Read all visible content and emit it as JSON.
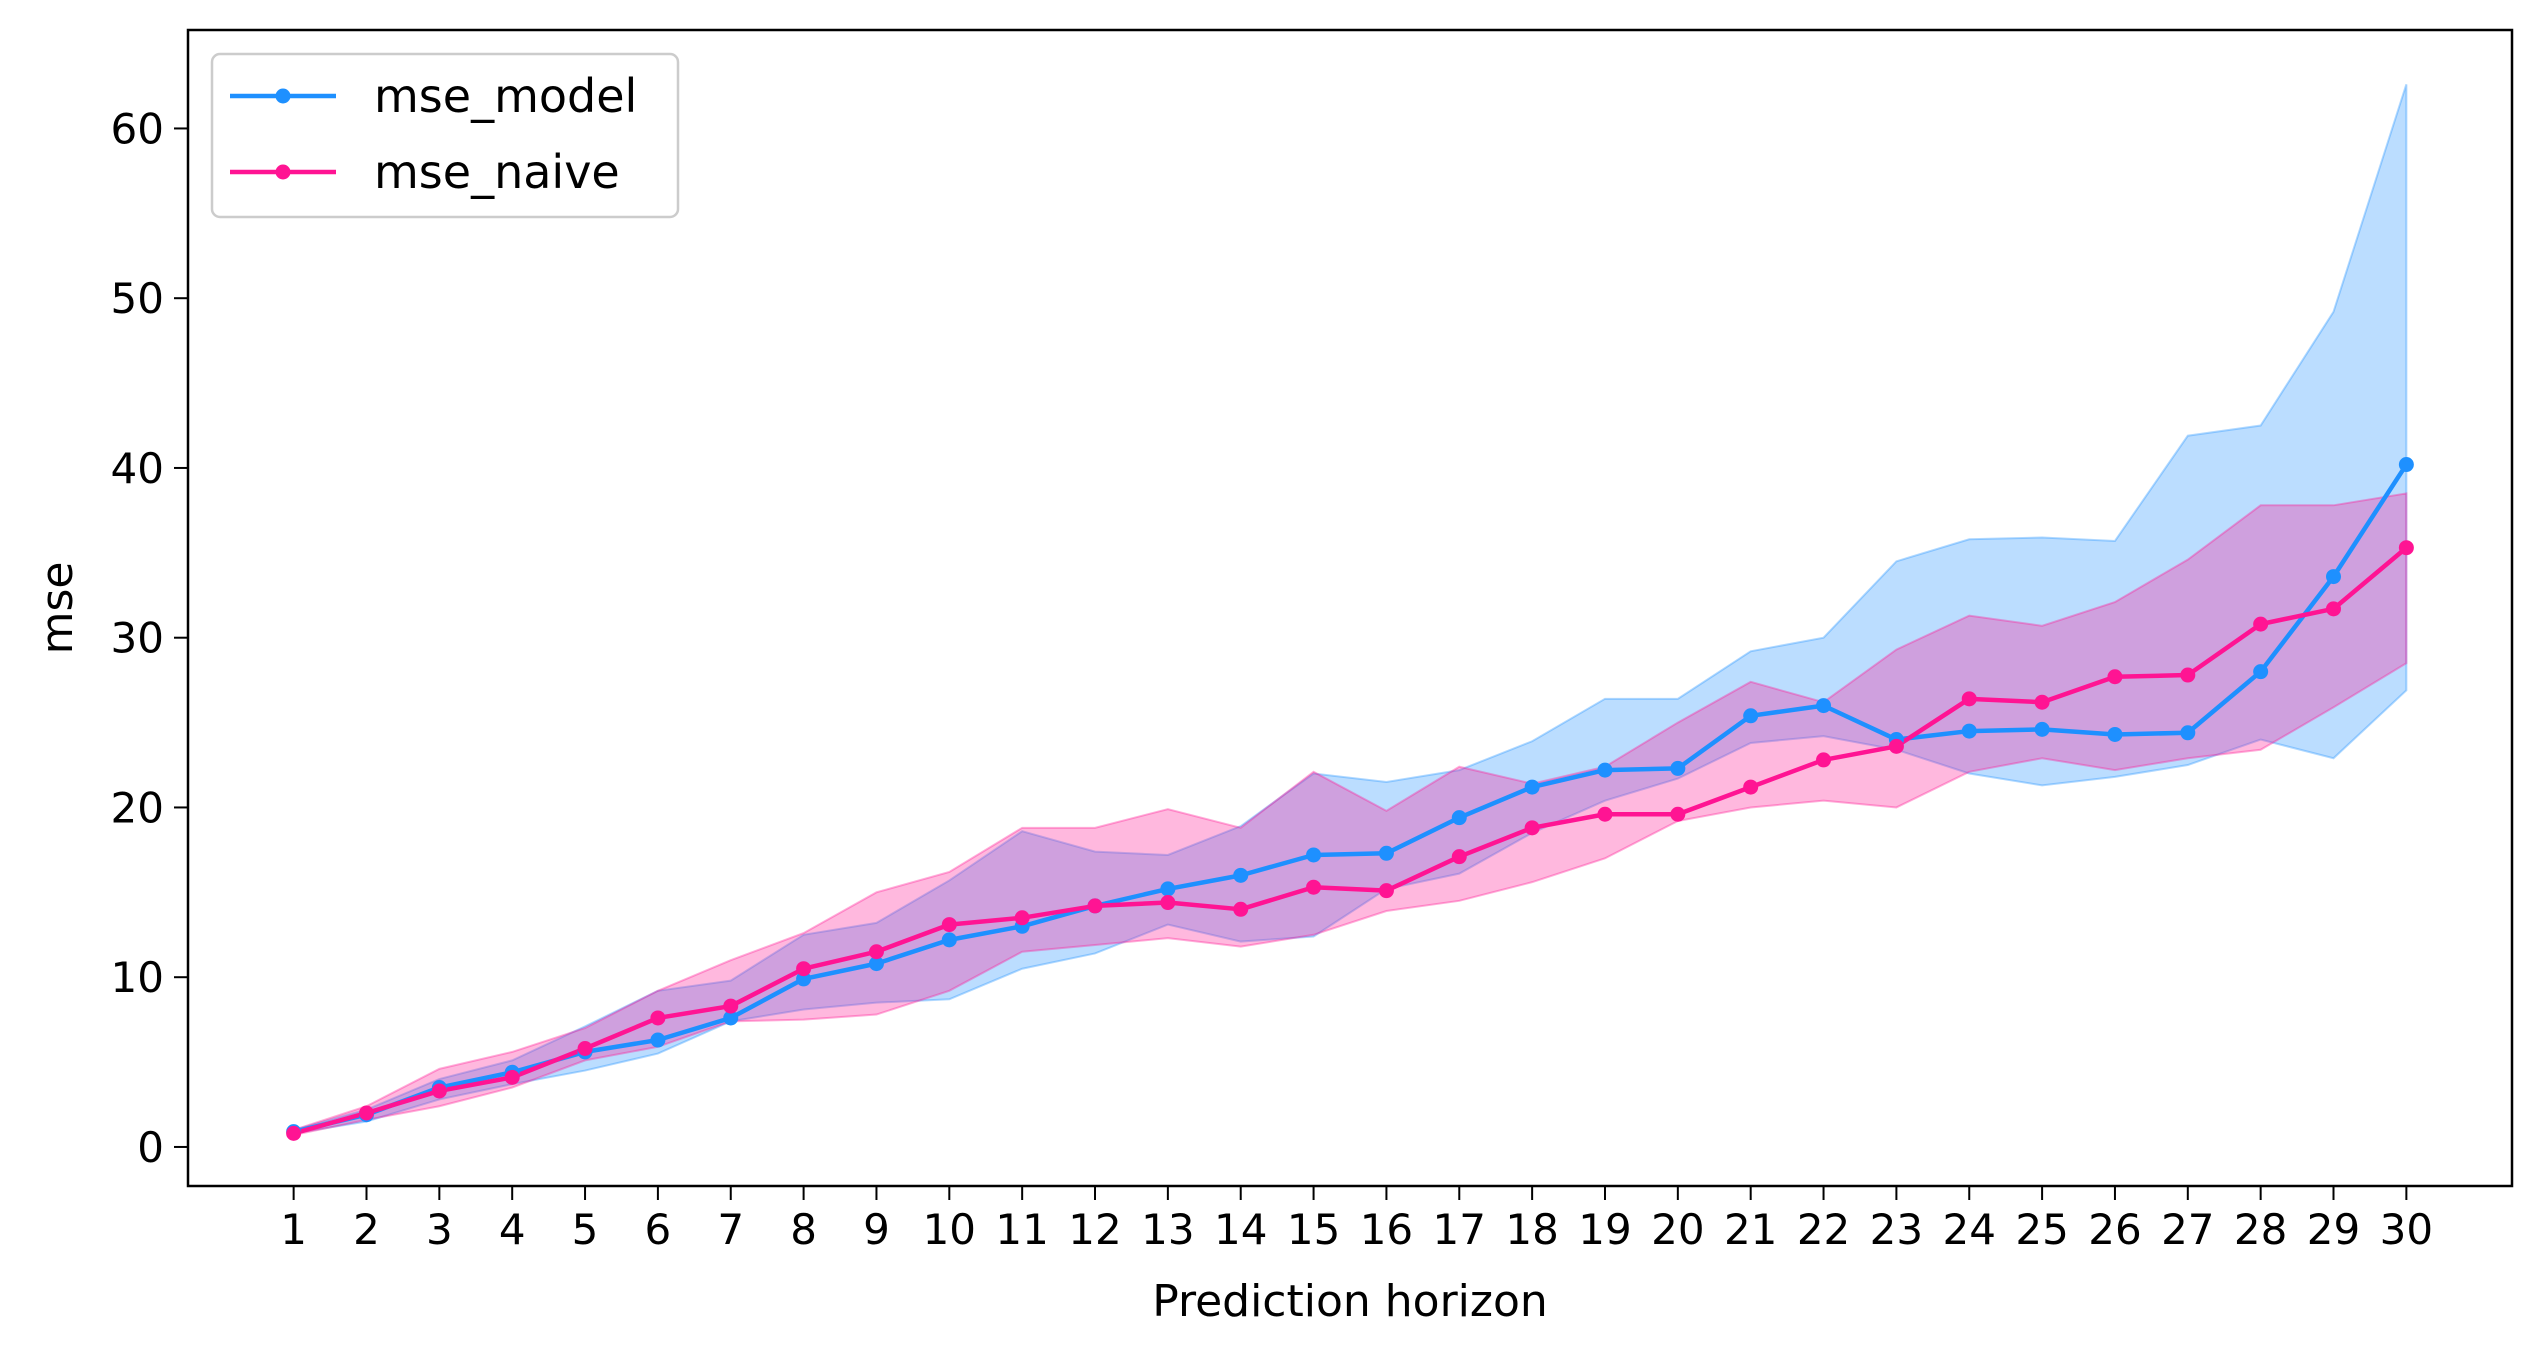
{
  "chart_data": {
    "type": "line",
    "xlabel": "Prediction horizon",
    "ylabel": "mse",
    "x": [
      1,
      2,
      3,
      4,
      5,
      6,
      7,
      8,
      9,
      10,
      11,
      12,
      13,
      14,
      15,
      16,
      17,
      18,
      19,
      20,
      21,
      22,
      23,
      24,
      25,
      26,
      27,
      28,
      29,
      30
    ],
    "ylim": [
      -2.3,
      65.8
    ],
    "xlim": [
      -0.45,
      31.45
    ],
    "yticks": [
      0,
      10,
      20,
      30,
      40,
      50,
      60
    ],
    "grid": false,
    "legend_position": "top-left",
    "series": [
      {
        "name": "mse_model",
        "color": "#1e90ff",
        "values": [
          0.9,
          1.9,
          3.5,
          4.4,
          5.6,
          6.3,
          7.6,
          9.9,
          10.8,
          12.2,
          13.0,
          14.2,
          15.2,
          16.0,
          17.2,
          17.3,
          19.4,
          21.2,
          22.2,
          22.3,
          25.4,
          26.0,
          24.0,
          24.5,
          24.6,
          24.3,
          24.4,
          28.0,
          33.6,
          40.2
        ],
        "band_lower": [
          0.8,
          1.5,
          2.8,
          3.7,
          4.5,
          5.5,
          7.4,
          8.1,
          8.5,
          8.7,
          10.5,
          11.4,
          13.1,
          12.1,
          12.4,
          15.2,
          16.1,
          18.5,
          20.4,
          21.7,
          23.8,
          24.2,
          23.4,
          22.0,
          21.3,
          21.8,
          22.5,
          24.0,
          22.9,
          26.9
        ],
        "band_upper": [
          1.0,
          2.2,
          4.0,
          5.1,
          7.1,
          9.2,
          9.8,
          12.5,
          13.2,
          15.7,
          18.6,
          17.4,
          17.2,
          18.9,
          22.0,
          21.5,
          22.2,
          23.9,
          26.4,
          26.4,
          29.2,
          30.0,
          34.5,
          35.8,
          35.9,
          35.7,
          41.9,
          42.5,
          49.2,
          62.6
        ]
      },
      {
        "name": "mse_naive",
        "color": "#ff1493",
        "values": [
          0.8,
          2.0,
          3.3,
          4.1,
          5.8,
          7.6,
          8.3,
          10.5,
          11.5,
          13.1,
          13.5,
          14.2,
          14.4,
          14.0,
          15.3,
          15.1,
          17.1,
          18.8,
          19.6,
          19.6,
          21.2,
          22.8,
          23.6,
          26.4,
          26.2,
          27.7,
          27.8,
          30.8,
          31.7,
          35.3
        ],
        "band_lower": [
          0.7,
          1.6,
          2.4,
          3.5,
          5.1,
          5.9,
          7.4,
          7.5,
          7.8,
          9.2,
          11.5,
          11.9,
          12.3,
          11.8,
          12.5,
          13.9,
          14.5,
          15.6,
          17.0,
          19.2,
          20.0,
          20.4,
          20.0,
          22.1,
          22.9,
          22.2,
          22.9,
          23.4,
          25.9,
          28.5
        ],
        "band_upper": [
          1.0,
          2.4,
          4.6,
          5.6,
          7.0,
          9.2,
          11.0,
          12.6,
          15.0,
          16.2,
          18.8,
          18.8,
          19.9,
          18.8,
          22.1,
          19.8,
          22.4,
          21.4,
          22.4,
          25.0,
          27.4,
          26.2,
          29.3,
          31.3,
          30.7,
          32.1,
          34.6,
          37.8,
          37.8,
          38.5
        ]
      }
    ]
  }
}
